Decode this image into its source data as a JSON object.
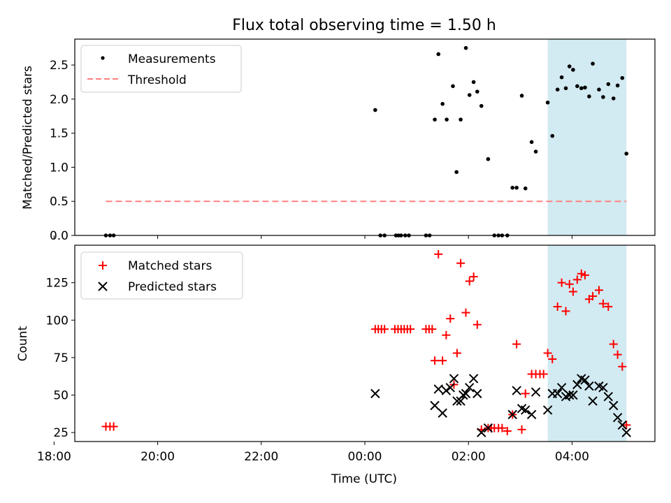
{
  "chart_data": [
    {
      "type": "scatter",
      "title": "Flux total observing time = 1.50 h",
      "xlabel": "",
      "ylabel": "Matched/Predicted stars",
      "x_unit": "hours since 00:00 UTC",
      "xlim": [
        -5.6,
        5.6
      ],
      "ylim": [
        0,
        2.88
      ],
      "yticks": [
        0.0,
        0.5,
        1.0,
        1.5,
        2.0,
        2.5
      ],
      "ytick_labels": [
        "0.0",
        "0.5",
        "1.0",
        "1.5",
        "2.0",
        "2.5"
      ],
      "shaded_region": {
        "x_start": 3.53,
        "x_end": 5.05,
        "color": "#add8e6"
      },
      "threshold": {
        "name": "Threshold",
        "value": 0.5,
        "x_start": -5.0,
        "x_end": 5.05,
        "color": "#ff8080"
      },
      "legend": [
        "Measurements",
        "Threshold"
      ],
      "series": [
        {
          "name": "Measurements",
          "x": [
            -5.0,
            -4.92,
            -4.85,
            0.2,
            0.3,
            0.38,
            0.6,
            0.65,
            0.7,
            0.78,
            0.85,
            1.18,
            1.25,
            1.35,
            1.42,
            1.5,
            1.58,
            1.7,
            1.77,
            1.85,
            1.95,
            2.02,
            2.1,
            2.17,
            2.25,
            2.38,
            2.5,
            2.58,
            2.65,
            2.75,
            2.85,
            2.93,
            3.03,
            3.1,
            3.22,
            3.3,
            3.53,
            3.62,
            3.72,
            3.8,
            3.88,
            3.95,
            4.02,
            4.1,
            4.18,
            4.25,
            4.33,
            4.4,
            4.52,
            4.6,
            4.7,
            4.8,
            4.88,
            4.97,
            5.05
          ],
          "y": [
            0.0,
            0.0,
            0.0,
            1.84,
            0.0,
            0.0,
            0.0,
            0.0,
            0.0,
            0.0,
            0.0,
            0.0,
            0.0,
            1.7,
            2.66,
            1.93,
            1.7,
            2.19,
            0.93,
            1.7,
            2.75,
            2.06,
            2.25,
            2.11,
            1.9,
            1.12,
            0.0,
            0.0,
            0.0,
            0.0,
            0.7,
            0.7,
            2.05,
            0.69,
            1.37,
            1.23,
            1.95,
            1.46,
            2.14,
            2.32,
            2.16,
            2.48,
            2.43,
            2.19,
            2.16,
            2.17,
            2.04,
            2.52,
            2.14,
            2.03,
            2.22,
            2.01,
            2.2,
            2.31,
            1.2
          ]
        }
      ]
    },
    {
      "type": "scatter",
      "title": "",
      "xlabel": "Time (UTC)",
      "ylabel": "Count",
      "x_unit": "hours since 00:00 UTC",
      "xlim": [
        -5.6,
        5.6
      ],
      "ylim": [
        19,
        150
      ],
      "yticks": [
        25,
        50,
        75,
        100,
        125
      ],
      "ytick_labels": [
        "25",
        "50",
        "75",
        "100",
        "125"
      ],
      "xticks": [
        -6,
        -4,
        -2,
        0,
        2,
        4
      ],
      "xtick_labels": [
        "18:00",
        "20:00",
        "22:00",
        "00:00",
        "02:00",
        "04:00"
      ],
      "shaded_region": {
        "x_start": 3.53,
        "x_end": 5.05,
        "color": "#add8e6"
      },
      "legend": [
        "Matched stars",
        "Predicted stars"
      ],
      "series": [
        {
          "name": "Matched stars",
          "marker": "+",
          "color": "#ff0000",
          "x": [
            -5.0,
            -4.92,
            -4.85,
            0.2,
            0.26,
            0.32,
            0.38,
            0.58,
            0.64,
            0.7,
            0.76,
            0.82,
            0.88,
            1.18,
            1.24,
            1.3,
            1.35,
            1.42,
            1.5,
            1.57,
            1.65,
            1.72,
            1.78,
            1.85,
            1.95,
            2.02,
            2.1,
            2.17,
            2.25,
            2.38,
            2.44,
            2.5,
            2.58,
            2.65,
            2.75,
            2.85,
            2.93,
            3.03,
            3.1,
            3.22,
            3.3,
            3.38,
            3.45,
            3.53,
            3.62,
            3.72,
            3.8,
            3.88,
            3.95,
            4.02,
            4.1,
            4.18,
            4.25,
            4.33,
            4.4,
            4.52,
            4.6,
            4.7,
            4.8,
            4.88,
            4.97,
            5.05
          ],
          "y": [
            29,
            29,
            29,
            94,
            94,
            94,
            94,
            94,
            94,
            94,
            94,
            94,
            94,
            94,
            94,
            94,
            73,
            144,
            73,
            90,
            101,
            57,
            78,
            138,
            105,
            126,
            129,
            97,
            27,
            28,
            28,
            28,
            28,
            28,
            26,
            37,
            84,
            27,
            51,
            64,
            64,
            64,
            64,
            78,
            74,
            109,
            125,
            106,
            124,
            119,
            127,
            131,
            130,
            114,
            116,
            120,
            111,
            109,
            84,
            77,
            69,
            30
          ]
        },
        {
          "name": "Predicted stars",
          "marker": "x",
          "color": "#000000",
          "x": [
            0.2,
            1.35,
            1.42,
            1.5,
            1.57,
            1.65,
            1.72,
            1.78,
            1.85,
            1.9,
            1.95,
            2.02,
            2.1,
            2.17,
            2.25,
            2.38,
            2.85,
            2.93,
            3.03,
            3.1,
            3.22,
            3.3,
            3.53,
            3.62,
            3.72,
            3.8,
            3.88,
            3.95,
            4.02,
            4.1,
            4.18,
            4.25,
            4.33,
            4.4,
            4.52,
            4.6,
            4.7,
            4.8,
            4.88,
            4.97,
            5.05
          ],
          "y": [
            51,
            43,
            54,
            38,
            53,
            55,
            61,
            46,
            46,
            50,
            51,
            55,
            61,
            51,
            25,
            28,
            37,
            53,
            41,
            40,
            37,
            52,
            40,
            51,
            51,
            55,
            49,
            50,
            50,
            57,
            61,
            60,
            56,
            46,
            56,
            55,
            49,
            43,
            35,
            30,
            25
          ]
        }
      ]
    }
  ]
}
